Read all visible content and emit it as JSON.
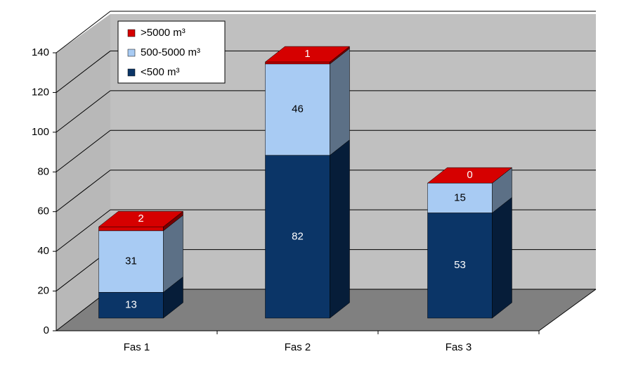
{
  "chart_data": {
    "type": "bar3d_stacked",
    "categories": [
      "Fas 1",
      "Fas 2",
      "Fas 3"
    ],
    "series": [
      {
        "name": "<500 m³",
        "color": "#0b3567",
        "values": [
          13,
          82,
          53
        ]
      },
      {
        "name": "500-5000 m³",
        "color": "#a8cbf3",
        "values": [
          31,
          46,
          15
        ]
      },
      {
        "name": ">5000 m³",
        "color": "#d60000",
        "values": [
          2,
          1,
          0
        ]
      }
    ],
    "ylim": [
      0,
      140
    ],
    "yticks": [
      0,
      20,
      40,
      60,
      80,
      100,
      120,
      140
    ],
    "grid": true,
    "legend": "top-left"
  }
}
